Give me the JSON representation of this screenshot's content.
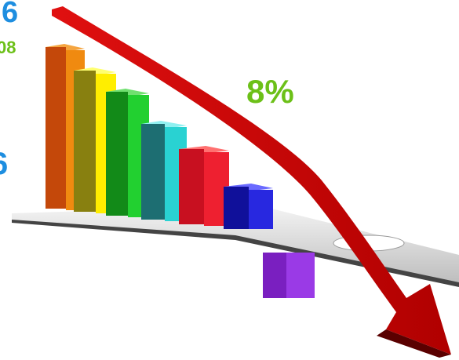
{
  "texts": {
    "top_number": "6",
    "year": "08",
    "percent": "8%",
    "left_number": "6"
  }
}
